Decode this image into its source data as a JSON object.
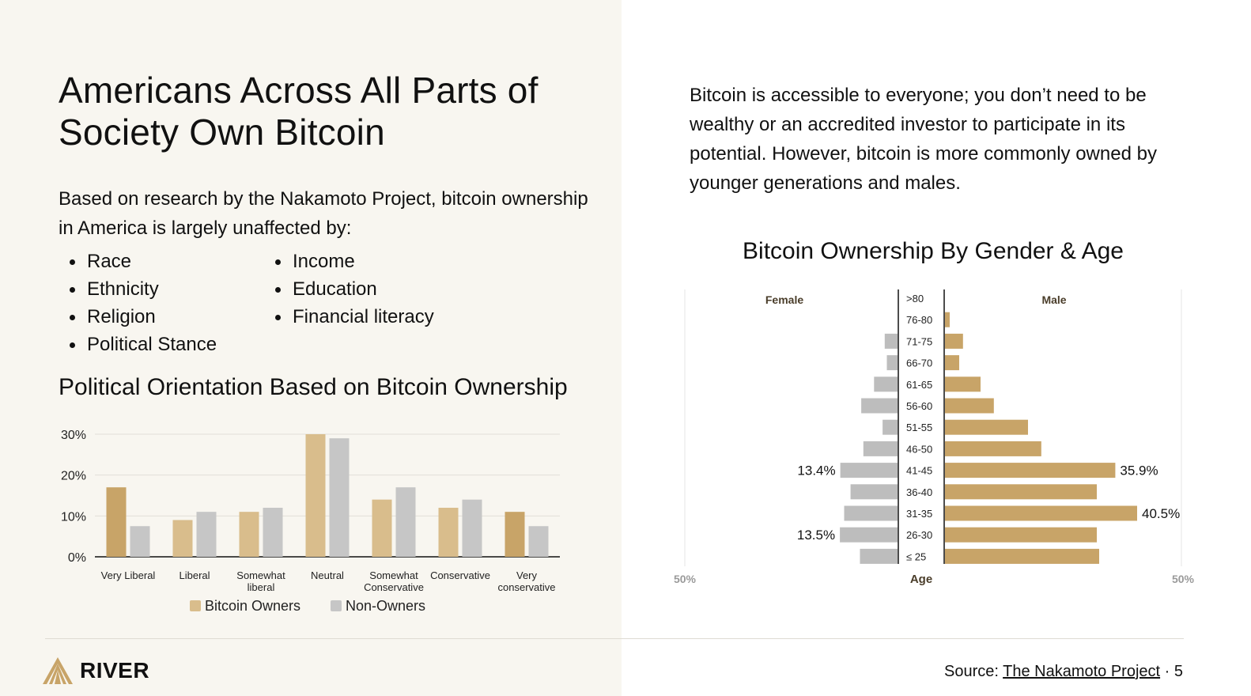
{
  "title": "Americans Across All Parts of Society Own Bitcoin",
  "intro": "Based on research by the Nakamoto Project, bitcoin ownership in America is largely unaffected by:",
  "factors_col1": [
    "Race",
    "Ethnicity",
    "Religion",
    "Political Stance"
  ],
  "factors_col2": [
    "Income",
    "Education",
    "Financial literacy"
  ],
  "right_text": "Bitcoin is accessible to everyone; you don’t need to be wealthy or an accredited investor to participate in its potential. However, bitcoin is more commonly owned by younger generations and males.",
  "logo_text": "RIVER",
  "source_prefix": "Source: ",
  "source_link": "The Nakamoto Project",
  "page_suffix": " · 5",
  "colors": {
    "owners": "#c8a468",
    "owners_light": "#d9bd8c",
    "non_owners": "#c6c6c6",
    "male_bar": "#c8a468",
    "female_bar": "#bdbdbd",
    "left_background": "#f8f6f0"
  },
  "chart_data": [
    {
      "type": "bar",
      "title": "Political Orientation Based on Bitcoin Ownership",
      "categories": [
        "Very Liberal",
        "Liberal",
        "Somewhat liberal",
        "Neutral",
        "Somewhat Conservative",
        "Conservative",
        "Very conservative"
      ],
      "series": [
        {
          "name": "Bitcoin Owners",
          "values": [
            17,
            9,
            11,
            30,
            14,
            12,
            11
          ]
        },
        {
          "name": "Non-Owners",
          "values": [
            7.5,
            11,
            12,
            29,
            17,
            14,
            7.5
          ]
        }
      ],
      "yticks": [
        "0%",
        "10%",
        "20%",
        "30%"
      ],
      "ylim": [
        0,
        30
      ],
      "grid": true,
      "legend": "bottom"
    },
    {
      "type": "bar",
      "orientation": "horizontal-pyramid",
      "title": "Bitcoin Ownership By Gender & Age",
      "left_label": "Female",
      "right_label": "Male",
      "center_label": "Age",
      "axis_min_label": "50%",
      "axis_max_label": "50%",
      "xlim": [
        0,
        50
      ],
      "categories": [
        ">80",
        "76-80",
        "71-75",
        "66-70",
        "61-65",
        "56-60",
        "51-55",
        "46-50",
        "41-45",
        "36-40",
        "31-35",
        "26-30",
        "≤ 25"
      ],
      "series": [
        {
          "name": "Female",
          "values": [
            0,
            0,
            3,
            2.5,
            5.5,
            8.5,
            3.5,
            8,
            13.4,
            11,
            12.5,
            13.5,
            8.8
          ]
        },
        {
          "name": "Male",
          "values": [
            0,
            1,
            3.8,
            3,
            7.5,
            10.3,
            17.5,
            20.3,
            35.9,
            32,
            40.5,
            32,
            32.5
          ]
        }
      ],
      "annotations": [
        {
          "series": "Female",
          "category": "41-45",
          "text": "13.4%"
        },
        {
          "series": "Female",
          "category": "26-30",
          "text": "13.5%"
        },
        {
          "series": "Male",
          "category": "41-45",
          "text": "35.9%"
        },
        {
          "series": "Male",
          "category": "31-35",
          "text": "40.5%"
        }
      ]
    }
  ]
}
